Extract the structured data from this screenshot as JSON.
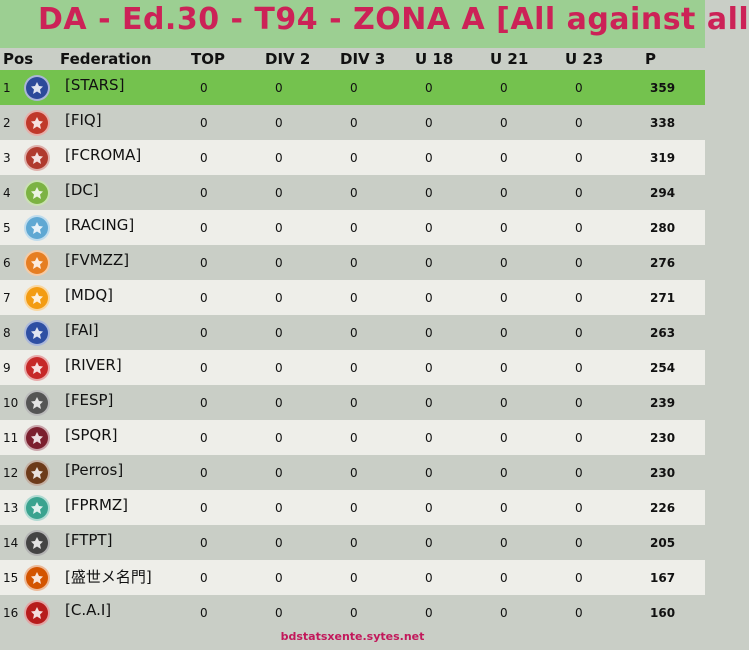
{
  "title": "DA - Ed.30 - T94 - ZONA A  [All against all",
  "headers": {
    "pos": "Pos",
    "federation": "Federation",
    "top": "TOP",
    "div2": "DIV 2",
    "div3": "DIV 3",
    "u18": "U 18",
    "u21": "U 21",
    "u23": "U 23",
    "p": "P"
  },
  "rows": [
    {
      "pos": "1",
      "name": "[STARS]",
      "top": "0",
      "div2": "0",
      "div3": "0",
      "u18": "0",
      "u21": "0",
      "u23": "0",
      "p": "359",
      "icon": "star-badge-icon",
      "color": "#2c4a9a"
    },
    {
      "pos": "2",
      "name": "[FIQ]",
      "top": "0",
      "div2": "0",
      "div3": "0",
      "u18": "0",
      "u21": "0",
      "u23": "0",
      "p": "338",
      "icon": "fiq-shield-icon",
      "color": "#c0392b"
    },
    {
      "pos": "3",
      "name": "[FCROMA]",
      "top": "0",
      "div2": "0",
      "div3": "0",
      "u18": "0",
      "u21": "0",
      "u23": "0",
      "p": "319",
      "icon": "fcroma-shield-icon",
      "color": "#b03a2e"
    },
    {
      "pos": "4",
      "name": "[DC]",
      "top": "0",
      "div2": "0",
      "div3": "0",
      "u18": "0",
      "u21": "0",
      "u23": "0",
      "p": "294",
      "icon": "dc-badge-icon",
      "color": "#7cb342"
    },
    {
      "pos": "5",
      "name": "[RACING]",
      "top": "0",
      "div2": "0",
      "div3": "0",
      "u18": "0",
      "u21": "0",
      "u23": "0",
      "p": "280",
      "icon": "racing-crest-icon",
      "color": "#5fa8d3"
    },
    {
      "pos": "6",
      "name": "[FVMZZ]",
      "top": "0",
      "div2": "0",
      "div3": "0",
      "u18": "0",
      "u21": "0",
      "u23": "0",
      "p": "276",
      "icon": "fvmzz-crest-icon",
      "color": "#e67e22"
    },
    {
      "pos": "7",
      "name": "[MDQ]",
      "top": "0",
      "div2": "0",
      "div3": "0",
      "u18": "0",
      "u21": "0",
      "u23": "0",
      "p": "271",
      "icon": "mdq-crest-icon",
      "color": "#f39c12"
    },
    {
      "pos": "8",
      "name": "[FAI]",
      "top": "0",
      "div2": "0",
      "div3": "0",
      "u18": "0",
      "u21": "0",
      "u23": "0",
      "p": "263",
      "icon": "fai-eagle-icon",
      "color": "#2e4fa3"
    },
    {
      "pos": "9",
      "name": "[RIVER]",
      "top": "0",
      "div2": "0",
      "div3": "0",
      "u18": "0",
      "u21": "0",
      "u23": "0",
      "p": "254",
      "icon": "river-crest-icon",
      "color": "#c62828"
    },
    {
      "pos": "10",
      "name": "[FESP]",
      "top": "0",
      "div2": "0",
      "div3": "0",
      "u18": "0",
      "u21": "0",
      "u23": "0",
      "p": "239",
      "icon": "fesp-crest-icon",
      "color": "#555555"
    },
    {
      "pos": "11",
      "name": "[SPQR]",
      "top": "0",
      "div2": "0",
      "div3": "0",
      "u18": "0",
      "u21": "0",
      "u23": "0",
      "p": "230",
      "icon": "spqr-crest-icon",
      "color": "#7b1f2e"
    },
    {
      "pos": "12",
      "name": "[Perros]",
      "top": "0",
      "div2": "0",
      "div3": "0",
      "u18": "0",
      "u21": "0",
      "u23": "0",
      "p": "230",
      "icon": "perros-shield-icon",
      "color": "#6d3b1a"
    },
    {
      "pos": "13",
      "name": "[FPRMZ]",
      "top": "0",
      "div2": "0",
      "div3": "0",
      "u18": "0",
      "u21": "0",
      "u23": "0",
      "p": "226",
      "icon": "fprmz-globe-icon",
      "color": "#3aa38f"
    },
    {
      "pos": "14",
      "name": "[FTPT]",
      "top": "0",
      "div2": "0",
      "div3": "0",
      "u18": "0",
      "u21": "0",
      "u23": "0",
      "p": "205",
      "icon": "ftpt-crest-icon",
      "color": "#444444"
    },
    {
      "pos": "15",
      "name": "[盛世メ名門]",
      "top": "0",
      "div2": "0",
      "div3": "0",
      "u18": "0",
      "u21": "0",
      "u23": "0",
      "p": "167",
      "icon": "dragon-crest-icon",
      "color": "#d35400"
    },
    {
      "pos": "16",
      "name": "[C.A.I]",
      "top": "0",
      "div2": "0",
      "div3": "0",
      "u18": "0",
      "u21": "0",
      "u23": "0",
      "p": "160",
      "icon": "cai-crest-icon",
      "color": "#b71c1c"
    }
  ],
  "footer": "bdstatsxente.sytes.net"
}
